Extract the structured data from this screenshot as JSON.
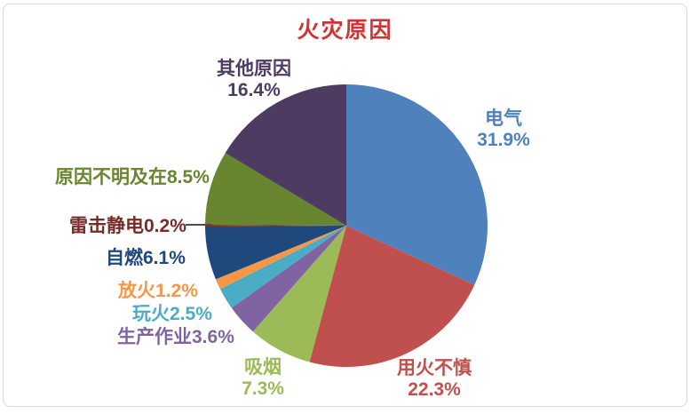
{
  "card": {
    "background": "#ffffff",
    "border_color": "#d8d8d8"
  },
  "title": {
    "text": "火灾原因",
    "color": "#D23232"
  },
  "chart_data": {
    "type": "pie",
    "title": "火灾原因",
    "start_angle_deg": 0,
    "direction": "clockwise",
    "unit": "percent",
    "total": 100,
    "slices": [
      {
        "id": "electrical",
        "label": "电气",
        "value": 31.9,
        "pct": "31.9%",
        "color": "#4F81BD"
      },
      {
        "id": "careless-fire-use",
        "label": "用火不慎",
        "value": 22.3,
        "pct": "22.3%",
        "color": "#C0504D"
      },
      {
        "id": "smoking",
        "label": "吸烟",
        "value": 7.3,
        "pct": "7.3%",
        "color": "#9BBB59"
      },
      {
        "id": "production-work",
        "label": "生产作业",
        "value": 3.6,
        "pct": "3.6%",
        "color": "#8064A2"
      },
      {
        "id": "playing-with-fire",
        "label": "玩火",
        "value": 2.5,
        "pct": "2.5%",
        "color": "#4BACC6"
      },
      {
        "id": "arson",
        "label": "放火",
        "value": 1.2,
        "pct": "1.2%",
        "color": "#F79646"
      },
      {
        "id": "spontaneous-combustion",
        "label": "自燃",
        "value": 6.1,
        "pct": "6.1%",
        "color": "#1F497D"
      },
      {
        "id": "lightning-static",
        "label": "雷击静电",
        "value": 0.2,
        "pct": "0.2%",
        "color": "#772C2A"
      },
      {
        "id": "unknown-cause",
        "label": "原因不明及在",
        "value": 8.5,
        "pct": "8.5%",
        "color": "#68852F"
      },
      {
        "id": "other-causes",
        "label": "其他原因",
        "value": 16.4,
        "pct": "16.4%",
        "color": "#4D3B62"
      }
    ]
  }
}
